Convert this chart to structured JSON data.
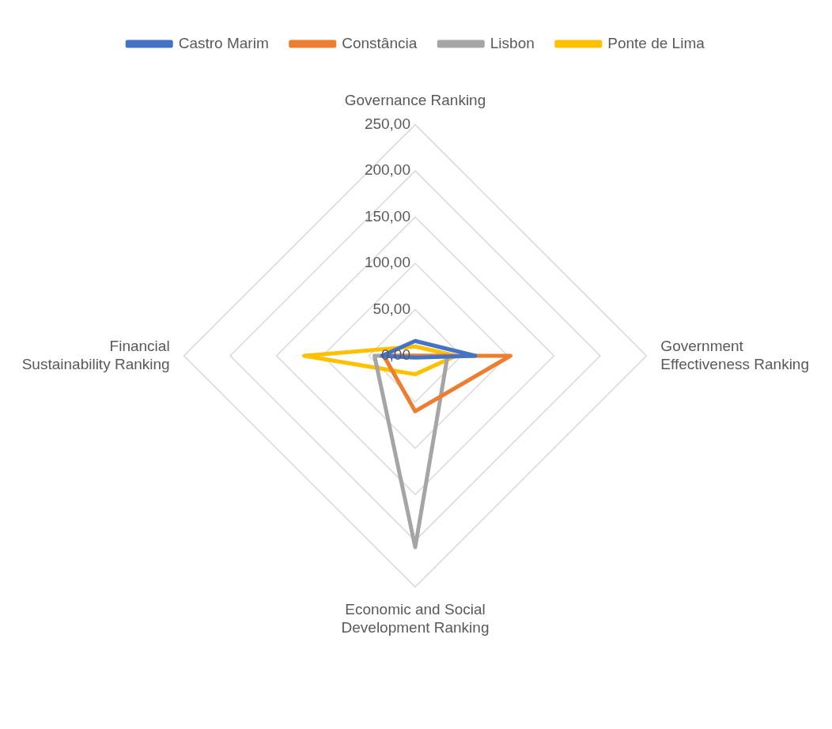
{
  "chart_data": {
    "type": "radar",
    "categories": [
      "Governance Ranking",
      "Government Effectiveness Ranking",
      "Economic and Social Development Ranking",
      "Financial Sustainability Ranking"
    ],
    "series": [
      {
        "name": "Castro Marim",
        "color": "#4472c4",
        "values": [
          16,
          65,
          2,
          36
        ]
      },
      {
        "name": "Constância",
        "color": "#ed7d31",
        "values": [
          0,
          103,
          60,
          34
        ]
      },
      {
        "name": "Lisbon",
        "color": "#a5a5a5",
        "values": [
          0,
          35,
          207,
          44
        ]
      },
      {
        "name": "Ponte de Lima",
        "color": "#ffc000",
        "values": [
          10,
          44,
          20,
          120
        ]
      }
    ],
    "ylim": [
      0,
      250
    ],
    "yticks": [
      {
        "value": 0,
        "label": "0,00"
      },
      {
        "value": 50,
        "label": "50,00"
      },
      {
        "value": 100,
        "label": "100,00"
      },
      {
        "value": 150,
        "label": "150,00"
      },
      {
        "value": 200,
        "label": "200,00"
      },
      {
        "value": 250,
        "label": "250,00"
      }
    ],
    "grid": true,
    "legend": "top",
    "marker": "none",
    "line_style": "solid"
  }
}
